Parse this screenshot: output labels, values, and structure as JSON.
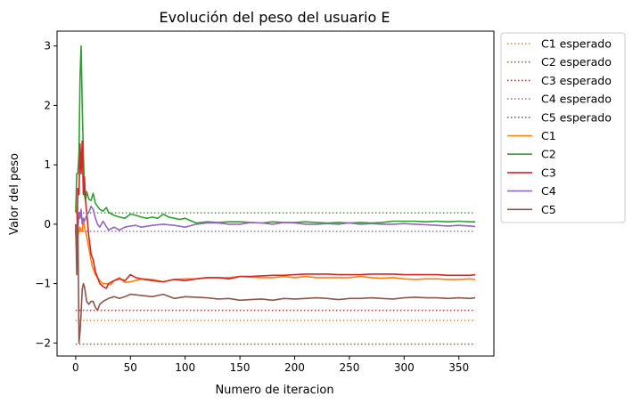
{
  "chart_data": {
    "type": "line",
    "title": "Evolución del peso del usuario E",
    "xlabel": "Numero de iteracion",
    "ylabel": "Valor del peso",
    "xlim": [
      -17,
      382
    ],
    "ylim": [
      -2.22,
      3.25
    ],
    "x_ticks": [
      0,
      50,
      100,
      150,
      200,
      250,
      300,
      350
    ],
    "y_ticks": [
      -2,
      -1,
      0,
      1,
      2,
      3
    ],
    "grid": false,
    "legend_position": "outside-right-top",
    "expected_series": [
      {
        "name": "C1 esperado",
        "color": "#ff7f0e",
        "value": -1.62,
        "x_range": [
          0,
          365
        ],
        "style": "dotted"
      },
      {
        "name": "C2 esperado",
        "color": "#2ca02c",
        "value": 0.19,
        "x_range": [
          0,
          365
        ],
        "style": "dotted"
      },
      {
        "name": "C3 esperado",
        "color": "#d62728",
        "value": -1.45,
        "x_range": [
          0,
          365
        ],
        "style": "dotted"
      },
      {
        "name": "C4 esperado",
        "color": "#9467bd",
        "value": -0.12,
        "x_range": [
          0,
          365
        ],
        "style": "dotted"
      },
      {
        "name": "C5 esperado",
        "color": "#8c564b",
        "value": -2.02,
        "x_range": [
          0,
          365
        ],
        "style": "dotted"
      }
    ],
    "series": [
      {
        "name": "C1",
        "color": "#ff7f0e",
        "x": [
          0,
          1,
          2,
          3,
          4,
          5,
          6,
          7,
          8,
          10,
          12,
          15,
          18,
          22,
          25,
          28,
          32,
          35,
          40,
          45,
          50,
          60,
          70,
          80,
          90,
          100,
          110,
          120,
          130,
          140,
          150,
          160,
          170,
          180,
          190,
          200,
          210,
          220,
          230,
          240,
          250,
          260,
          270,
          280,
          290,
          300,
          310,
          320,
          330,
          340,
          350,
          360,
          365
        ],
        "y": [
          0.3,
          0.2,
          -0.2,
          -0.1,
          -0.05,
          -0.12,
          -0.12,
          0.1,
          -0.05,
          -0.2,
          -0.4,
          -0.7,
          -0.85,
          -0.95,
          -1.0,
          -1.0,
          -1.02,
          -0.95,
          -0.9,
          -0.98,
          -0.97,
          -0.92,
          -0.93,
          -0.97,
          -0.93,
          -0.92,
          -0.92,
          -0.9,
          -0.9,
          -0.9,
          -0.88,
          -0.89,
          -0.9,
          -0.9,
          -0.88,
          -0.9,
          -0.88,
          -0.9,
          -0.9,
          -0.9,
          -0.9,
          -0.88,
          -0.9,
          -0.91,
          -0.9,
          -0.92,
          -0.93,
          -0.92,
          -0.92,
          -0.93,
          -0.93,
          -0.92,
          -0.93
        ]
      },
      {
        "name": "C2",
        "color": "#2ca02c",
        "x": [
          0,
          1,
          2,
          3,
          4,
          5,
          6,
          7,
          8,
          9,
          10,
          12,
          14,
          16,
          18,
          20,
          22,
          25,
          28,
          30,
          35,
          40,
          45,
          50,
          55,
          60,
          65,
          70,
          75,
          80,
          85,
          90,
          95,
          100,
          105,
          110,
          115,
          120,
          130,
          140,
          150,
          160,
          170,
          180,
          190,
          200,
          210,
          220,
          230,
          240,
          250,
          260,
          270,
          280,
          290,
          300,
          310,
          320,
          330,
          340,
          350,
          360,
          365
        ],
        "y": [
          0.2,
          0.85,
          0.85,
          1.2,
          2.5,
          3.0,
          2.0,
          1.2,
          0.5,
          0.4,
          0.55,
          0.42,
          0.4,
          0.52,
          0.35,
          0.3,
          0.25,
          0.22,
          0.28,
          0.2,
          0.15,
          0.12,
          0.1,
          0.17,
          0.15,
          0.12,
          0.1,
          0.12,
          0.1,
          0.17,
          0.12,
          0.1,
          0.08,
          0.1,
          0.06,
          0.02,
          0.03,
          0.04,
          0.03,
          0.04,
          0.04,
          0.03,
          0.02,
          0.04,
          0.03,
          0.03,
          0.04,
          0.03,
          0.02,
          0.03,
          0.02,
          0.03,
          0.02,
          0.03,
          0.05,
          0.05,
          0.05,
          0.04,
          0.05,
          0.04,
          0.05,
          0.04,
          0.04
        ]
      },
      {
        "name": "C3",
        "color": "#d62728",
        "x": [
          0,
          1,
          2,
          3,
          4,
          5,
          6,
          7,
          8,
          9,
          10,
          12,
          14,
          16,
          18,
          20,
          22,
          25,
          28,
          30,
          35,
          40,
          45,
          50,
          55,
          60,
          70,
          80,
          90,
          100,
          110,
          120,
          130,
          140,
          150,
          160,
          170,
          180,
          190,
          200,
          210,
          220,
          230,
          240,
          250,
          260,
          270,
          280,
          290,
          300,
          310,
          320,
          330,
          340,
          350,
          360,
          365
        ],
        "y": [
          -0.1,
          -0.5,
          0.6,
          0.5,
          1.35,
          0.85,
          1.4,
          0.5,
          0.8,
          0.4,
          0.2,
          -0.2,
          -0.5,
          -0.6,
          -0.8,
          -0.9,
          -1.0,
          -1.05,
          -1.08,
          -1.0,
          -0.95,
          -0.92,
          -0.95,
          -0.85,
          -0.9,
          -0.92,
          -0.95,
          -0.97,
          -0.93,
          -0.95,
          -0.92,
          -0.9,
          -0.9,
          -0.92,
          -0.88,
          -0.88,
          -0.87,
          -0.86,
          -0.86,
          -0.85,
          -0.84,
          -0.84,
          -0.84,
          -0.85,
          -0.85,
          -0.85,
          -0.84,
          -0.84,
          -0.84,
          -0.85,
          -0.85,
          -0.85,
          -0.85,
          -0.86,
          -0.86,
          -0.86,
          -0.85
        ]
      },
      {
        "name": "C4",
        "color": "#9467bd",
        "x": [
          0,
          1,
          2,
          3,
          4,
          5,
          6,
          7,
          8,
          10,
          12,
          14,
          16,
          18,
          20,
          22,
          25,
          30,
          35,
          40,
          45,
          50,
          55,
          60,
          70,
          80,
          90,
          100,
          110,
          120,
          130,
          140,
          150,
          160,
          170,
          180,
          190,
          200,
          210,
          220,
          230,
          240,
          250,
          260,
          270,
          280,
          290,
          300,
          310,
          320,
          330,
          340,
          350,
          360,
          365
        ],
        "y": [
          0.0,
          -0.2,
          -0.1,
          0.2,
          0.1,
          0.25,
          0.0,
          0.1,
          0.05,
          0.15,
          0.2,
          0.3,
          0.25,
          0.1,
          0.0,
          -0.05,
          0.05,
          -0.1,
          -0.05,
          -0.1,
          -0.05,
          -0.03,
          -0.02,
          -0.05,
          -0.02,
          0.0,
          -0.02,
          -0.05,
          0.0,
          0.02,
          0.02,
          0.0,
          0.0,
          0.03,
          0.02,
          0.0,
          0.03,
          0.02,
          0.0,
          0.0,
          0.01,
          0.0,
          0.02,
          0.0,
          0.01,
          0.0,
          0.0,
          0.01,
          0.0,
          -0.01,
          -0.02,
          -0.03,
          -0.02,
          -0.03,
          -0.04
        ]
      },
      {
        "name": "C5",
        "color": "#8c564b",
        "x": [
          0,
          1,
          2,
          3,
          4,
          5,
          6,
          7,
          8,
          10,
          12,
          14,
          16,
          18,
          20,
          22,
          25,
          30,
          35,
          40,
          45,
          50,
          60,
          70,
          80,
          90,
          100,
          110,
          120,
          130,
          140,
          150,
          160,
          170,
          180,
          190,
          200,
          210,
          220,
          230,
          240,
          250,
          260,
          270,
          280,
          290,
          300,
          310,
          320,
          330,
          340,
          350,
          360,
          365
        ],
        "y": [
          0.0,
          -0.85,
          0.1,
          -2.0,
          -1.8,
          -1.5,
          -1.1,
          -1.0,
          -1.05,
          -1.3,
          -1.35,
          -1.3,
          -1.3,
          -1.4,
          -1.45,
          -1.35,
          -1.3,
          -1.25,
          -1.22,
          -1.25,
          -1.22,
          -1.18,
          -1.2,
          -1.22,
          -1.18,
          -1.25,
          -1.22,
          -1.23,
          -1.24,
          -1.26,
          -1.25,
          -1.28,
          -1.27,
          -1.26,
          -1.28,
          -1.25,
          -1.26,
          -1.25,
          -1.24,
          -1.25,
          -1.27,
          -1.25,
          -1.25,
          -1.24,
          -1.25,
          -1.26,
          -1.24,
          -1.23,
          -1.24,
          -1.24,
          -1.25,
          -1.24,
          -1.25,
          -1.24
        ]
      }
    ],
    "legend": [
      "C1 esperado",
      "C2 esperado",
      "C3 esperado",
      "C4 esperado",
      "C5 esperado",
      "C1",
      "C2",
      "C3",
      "C4",
      "C5"
    ]
  }
}
